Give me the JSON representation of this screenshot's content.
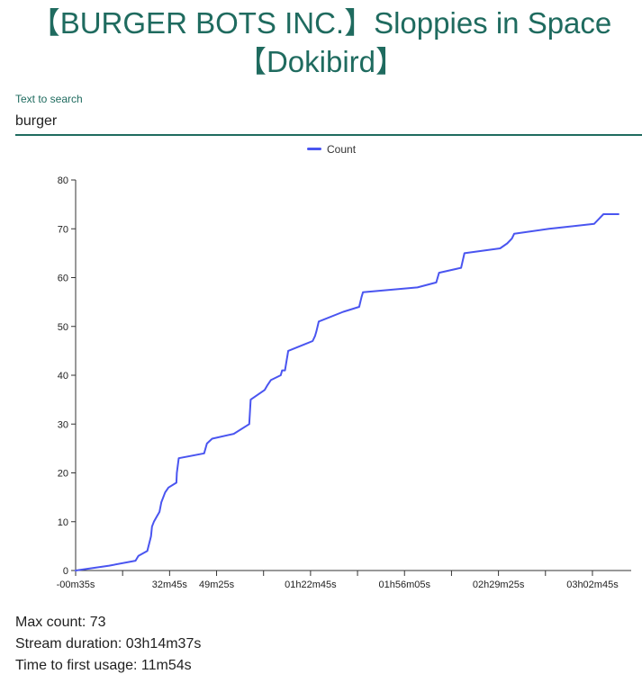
{
  "page": {
    "title": "【BURGER BOTS INC.】Sloppies in Space【Dokibird】"
  },
  "search": {
    "label": "Text to search",
    "value": "burger"
  },
  "colors": {
    "accent": "#1f6b5f",
    "series": "#4a55f0"
  },
  "chart_data": {
    "type": "line",
    "title": "",
    "xlabel": "",
    "ylabel": "",
    "legend": {
      "position": "top-center",
      "entries": [
        "Count"
      ]
    },
    "grid": false,
    "x_unit": "seconds",
    "xlim": [
      -35,
      11790
    ],
    "ylim": [
      0,
      80
    ],
    "y_ticks": [
      "0",
      "10",
      "20",
      "30",
      "40",
      "50",
      "60",
      "70",
      "80"
    ],
    "x_tick_labels": [
      {
        "at": -35,
        "label": "-00m35s"
      },
      {
        "at": 1965,
        "label": "32m45s"
      },
      {
        "at": 2965,
        "label": "49m25s"
      },
      {
        "at": 4965,
        "label": "01h22m45s"
      },
      {
        "at": 6965,
        "label": "01h56m05s"
      },
      {
        "at": 8965,
        "label": "02h29m25s"
      },
      {
        "at": 10965,
        "label": "03h02m45s"
      }
    ],
    "x_minor_ticks": [
      965,
      3965,
      5965,
      7965,
      9965,
      11965
    ],
    "series": [
      {
        "name": "Count",
        "x": [
          -35,
          680,
          1240,
          1300,
          1490,
          1570,
          1590,
          1630,
          1690,
          1750,
          1790,
          1870,
          1940,
          2110,
          2120,
          2160,
          2700,
          2760,
          2870,
          3330,
          3660,
          3690,
          3990,
          4050,
          4120,
          4330,
          4360,
          4420,
          4490,
          5010,
          5060,
          5090,
          5140,
          5660,
          6000,
          6050,
          6080,
          7240,
          7640,
          7700,
          8170,
          8240,
          9000,
          9150,
          9250,
          9300,
          10040,
          11000,
          11100,
          11200,
          11520
        ],
        "y": [
          0,
          1,
          2,
          3,
          4,
          7,
          9,
          10,
          11,
          12,
          14,
          16,
          17,
          18,
          20,
          23,
          24,
          26,
          27,
          28,
          30,
          35,
          37,
          38,
          39,
          40,
          41,
          41,
          45,
          47,
          48,
          49,
          51,
          53,
          54,
          56,
          57,
          58,
          59,
          61,
          62,
          65,
          66,
          67,
          68,
          69,
          70,
          71,
          72,
          73,
          73
        ]
      }
    ]
  },
  "stats": {
    "max_count": "Max count: 73",
    "stream_duration": "Stream duration: 03h14m37s",
    "time_to_first_usage": "Time to first usage: 11m54s"
  }
}
